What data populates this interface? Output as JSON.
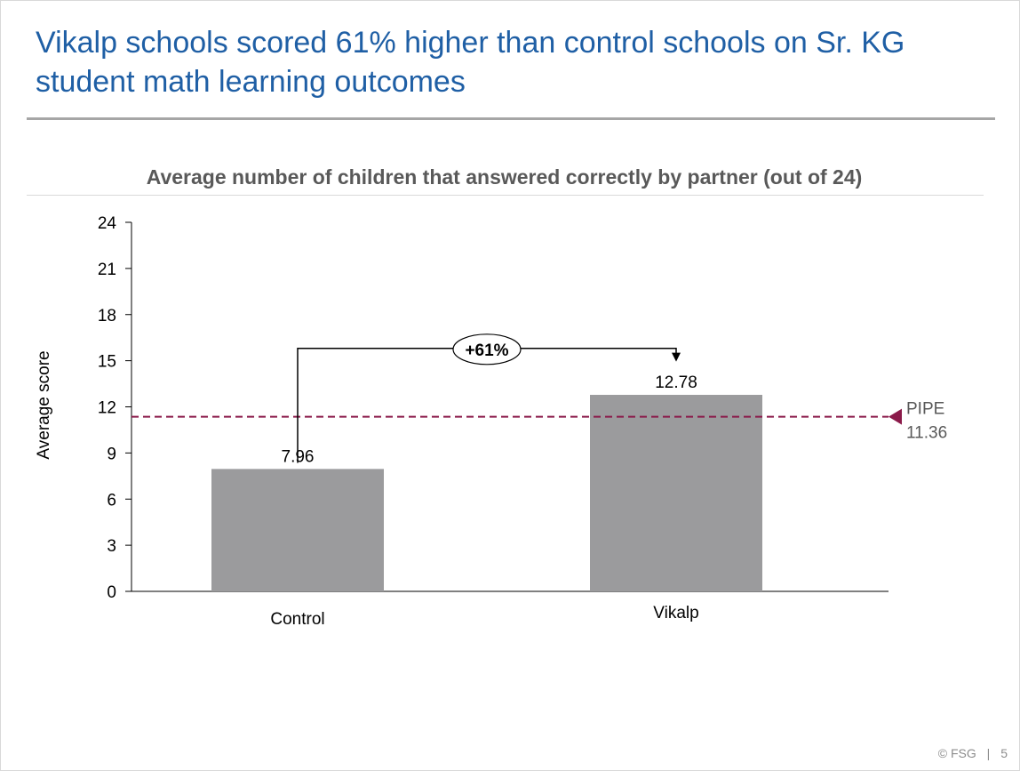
{
  "slide": {
    "title": "Vikalp schools scored 61% higher than control schools on Sr. KG student math learning outcomes",
    "footer_copyright": "© FSG",
    "footer_separator": "|",
    "page_number": "5"
  },
  "chart_data": {
    "type": "bar",
    "title": "Average number of children that answered correctly by partner (out of 24)",
    "xlabel": "",
    "ylabel": "Average score",
    "categories": [
      "Control",
      "Vikalp"
    ],
    "values": [
      7.96,
      12.78
    ],
    "value_labels": [
      "7.96",
      "12.78"
    ],
    "ylim": [
      0,
      24
    ],
    "yticks": [
      0,
      3,
      6,
      9,
      12,
      15,
      18,
      21,
      24
    ],
    "bar_color": "#9b9b9d",
    "grid": false,
    "reference_line": {
      "label": "PIPE",
      "value": 11.36,
      "value_label": "11.36",
      "color": "#8b1a4a"
    },
    "annotation": {
      "label": "+61%",
      "from": "Control",
      "to": "Vikalp"
    }
  }
}
